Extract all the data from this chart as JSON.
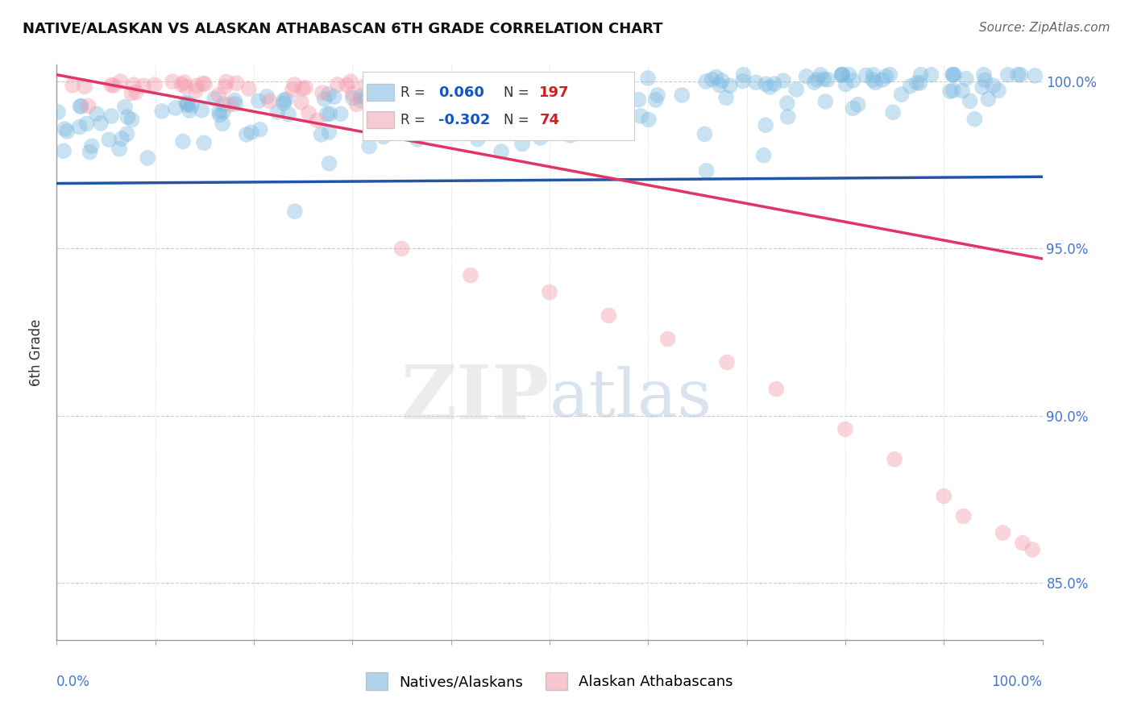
{
  "title": "NATIVE/ALASKAN VS ALASKAN ATHABASCAN 6TH GRADE CORRELATION CHART",
  "source": "Source: ZipAtlas.com",
  "ylabel": "6th Grade",
  "blue_R": 0.06,
  "blue_N": 197,
  "pink_R": -0.302,
  "pink_N": 74,
  "blue_color": "#7ab8e0",
  "pink_color": "#f4a0b0",
  "blue_line_color": "#2255aa",
  "pink_line_color": "#e03565",
  "legend_blue_label": "Natives/Alaskans",
  "legend_pink_label": "Alaskan Athabascans",
  "background_color": "#ffffff",
  "ylim_low": 0.833,
  "ylim_high": 1.005,
  "seed": 7
}
